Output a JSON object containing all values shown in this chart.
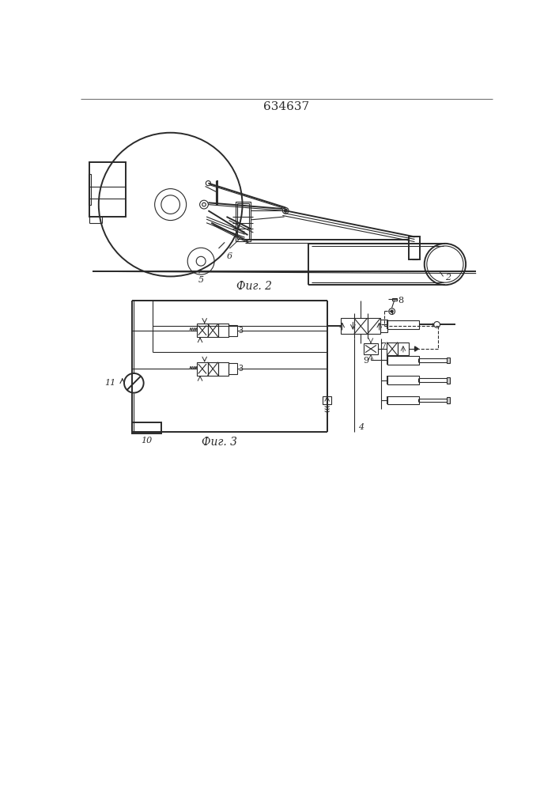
{
  "title": "634637",
  "fig2_label": "Фиг. 2",
  "fig3_label": "Фиг. 3",
  "bg_color": "#ffffff",
  "line_color": "#2a2a2a",
  "label_2": "2",
  "label_5": "5",
  "label_6": "6",
  "label_4": "4",
  "label_7": "7",
  "label_8": "8",
  "label_9": "9",
  "label_10": "10",
  "label_11": "11"
}
